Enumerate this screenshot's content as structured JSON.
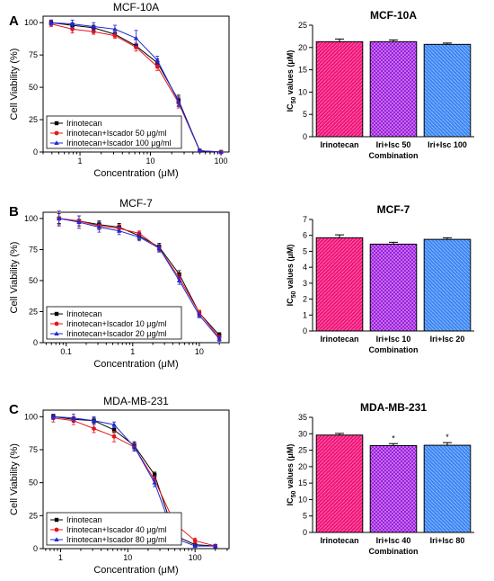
{
  "colors": {
    "irinotecan": "#000000",
    "low_dose": "#e8141b",
    "high_dose": "#1f28d6",
    "bar_pink": "#f0157a",
    "bar_purple": "#9a22d8",
    "bar_blue": "#3d86f2"
  },
  "panels": [
    {
      "label": "A",
      "line_chart": {
        "type": "line",
        "title": "MCF-10A",
        "xlabel": "Concentration (μM)",
        "ylabel": "Cell Viability (%)",
        "xscale": "log",
        "xlim": [
          0.3,
          130
        ],
        "ylim": [
          0,
          105
        ],
        "xticks": [
          1,
          10,
          100
        ],
        "xtick_labels": [
          "1",
          "10",
          "100"
        ],
        "yticks": [
          0,
          25,
          50,
          75,
          100
        ],
        "ytick_labels": [
          "0",
          "25",
          "50",
          "75",
          "100"
        ],
        "legend": "bottom-left",
        "x": [
          0.39,
          0.78,
          1.56,
          3.13,
          6.25,
          12.5,
          25,
          50,
          100
        ],
        "series": [
          {
            "name": "Irinotecan",
            "color": "#000000",
            "marker": "square",
            "values": [
              100,
              98,
              96,
              91,
              82,
              69,
              40,
              1,
              0
            ],
            "errors": [
              2,
              2,
              2,
              2,
              2,
              3,
              4,
              1,
              0
            ]
          },
          {
            "name": "Irinotecan+Iscador 50 μg/ml",
            "color": "#e8141b",
            "marker": "circle",
            "values": [
              99,
              95,
              93,
              90,
              81,
              66,
              38,
              1,
              0
            ],
            "errors": [
              2,
              3,
              2,
              2,
              3,
              3,
              4,
              1,
              0
            ]
          },
          {
            "name": "Irinotecan+Iscador 100 μg/ml",
            "color": "#1f28d6",
            "marker": "triangle",
            "values": [
              100,
              99,
              97,
              95,
              88,
              71,
              39,
              1,
              0
            ],
            "errors": [
              2,
              3,
              3,
              3,
              6,
              3,
              4,
              1,
              0
            ]
          }
        ]
      },
      "bar_chart": {
        "type": "bar",
        "title": "MCF-10A",
        "xlabel": "Combination",
        "ylabel_pre": "IC",
        "ylabel_sub": "50",
        "ylabel_post": " values (μM)",
        "ylim": [
          0,
          25
        ],
        "yticks": [
          0,
          5,
          10,
          15,
          20,
          25
        ],
        "ytick_labels": [
          "0",
          "5",
          "10",
          "15",
          "20",
          "25"
        ],
        "categories": [
          "Irinotecan",
          "Iri+Isc 50",
          "Iri+Isc 100"
        ],
        "values": [
          21.3,
          21.3,
          20.7
        ],
        "errors": [
          0.6,
          0.4,
          0.3
        ],
        "significance": [
          "",
          "",
          ""
        ]
      }
    },
    {
      "label": "B",
      "line_chart": {
        "type": "line",
        "title": "MCF-7",
        "xlabel": "Concentration (μM)",
        "ylabel": "Cell Viability (%)",
        "xscale": "log",
        "xlim": [
          0.045,
          28
        ],
        "ylim": [
          0,
          105
        ],
        "xticks": [
          0.1,
          1,
          10
        ],
        "xtick_labels": [
          "0.1",
          "1",
          "10"
        ],
        "yticks": [
          0,
          25,
          50,
          75,
          100
        ],
        "ytick_labels": [
          "0",
          "25",
          "50",
          "75",
          "100"
        ],
        "legend": "bottom-left",
        "x": [
          0.078,
          0.156,
          0.3125,
          0.625,
          1.25,
          2.5,
          5,
          10,
          20
        ],
        "series": [
          {
            "name": "Irinotecan",
            "color": "#000000",
            "marker": "square",
            "values": [
              100,
              98,
              95,
              93,
              86,
              77,
              55,
              24,
              6
            ],
            "errors": [
              4,
              4,
              3,
              3,
              3,
              3,
              3,
              2,
              2
            ]
          },
          {
            "name": "Irinotecan+Iscador 10 μg/ml",
            "color": "#e8141b",
            "marker": "circle",
            "values": [
              100,
              98,
              94,
              92,
              88,
              76,
              52,
              24,
              4
            ],
            "errors": [
              5,
              4,
              3,
              3,
              2,
              3,
              3,
              2,
              2
            ]
          },
          {
            "name": "Irinotecan+Iscador 20 μg/ml",
            "color": "#1f28d6",
            "marker": "triangle",
            "values": [
              100,
              97,
              93,
              90,
              85,
              76,
              50,
              22,
              3
            ],
            "errors": [
              6,
              5,
              4,
              3,
              3,
              3,
              3,
              2,
              2
            ]
          }
        ]
      },
      "bar_chart": {
        "type": "bar",
        "title": "MCF-7",
        "xlabel": "Combination",
        "ylabel_pre": "IC",
        "ylabel_sub": "50",
        "ylabel_post": " values (μM)",
        "ylim": [
          0,
          7
        ],
        "yticks": [
          0,
          1,
          2,
          3,
          4,
          5,
          6,
          7
        ],
        "ytick_labels": [
          "0",
          "1",
          "2",
          "3",
          "4",
          "5",
          "6",
          "7"
        ],
        "categories": [
          "Irinotecan",
          "Iri+Isc 10",
          "Iri+Isc 20"
        ],
        "values": [
          5.85,
          5.45,
          5.75
        ],
        "errors": [
          0.18,
          0.12,
          0.1
        ],
        "significance": [
          "",
          "",
          ""
        ]
      }
    },
    {
      "label": "C",
      "line_chart": {
        "type": "line",
        "title": "MDA-MB-231",
        "xlabel": "Concentration (μM)",
        "ylabel": "Cell Viability (%)",
        "xscale": "log",
        "xlim": [
          0.55,
          320
        ],
        "ylim": [
          0,
          105
        ],
        "xticks": [
          1,
          10,
          100
        ],
        "xtick_labels": [
          "1",
          "10",
          "100"
        ],
        "yticks": [
          0,
          25,
          50,
          75,
          100
        ],
        "ytick_labels": [
          "0",
          "25",
          "50",
          "75",
          "100"
        ],
        "legend": "bottom-left",
        "x": [
          0.78,
          1.56,
          3.13,
          6.25,
          12.5,
          25,
          50,
          100,
          200
        ],
        "series": [
          {
            "name": "Irinotecan",
            "color": "#000000",
            "marker": "square",
            "values": [
              100,
              98,
              97,
              90,
              78,
              56,
              10,
              3,
              2
            ],
            "errors": [
              2,
              2,
              2,
              2,
              3,
              2,
              2,
              1,
              1
            ]
          },
          {
            "name": "Irinotecan+Iscador 40 μg/ml",
            "color": "#e8141b",
            "marker": "circle",
            "values": [
              99,
              97,
              91,
              85,
              77,
              52,
              19,
              6,
              2
            ],
            "errors": [
              3,
              3,
              3,
              4,
              3,
              3,
              3,
              2,
              1
            ]
          },
          {
            "name": "Irinotecan+Iscador 80 μg/ml",
            "color": "#1f28d6",
            "marker": "triangle",
            "values": [
              100,
              99,
              97,
              94,
              77,
              50,
              8,
              2,
              2
            ],
            "errors": [
              2,
              3,
              3,
              2,
              3,
              3,
              2,
              1,
              1
            ]
          }
        ]
      },
      "bar_chart": {
        "type": "bar",
        "title": "MDA-MB-231",
        "xlabel": "Combination",
        "ylabel_pre": "IC",
        "ylabel_sub": "50",
        "ylabel_post": " values (μM)",
        "ylim": [
          0,
          35
        ],
        "yticks": [
          0,
          5,
          10,
          15,
          20,
          25,
          30,
          35
        ],
        "ytick_labels": [
          "0",
          "5",
          "10",
          "15",
          "20",
          "25",
          "30",
          "35"
        ],
        "categories": [
          "Irinotecan",
          "Iri+Isc 40",
          "Iri+Isc 80"
        ],
        "values": [
          29.6,
          26.4,
          26.5
        ],
        "errors": [
          0.5,
          0.6,
          0.8
        ],
        "significance": [
          "",
          "*",
          "*"
        ]
      }
    }
  ]
}
